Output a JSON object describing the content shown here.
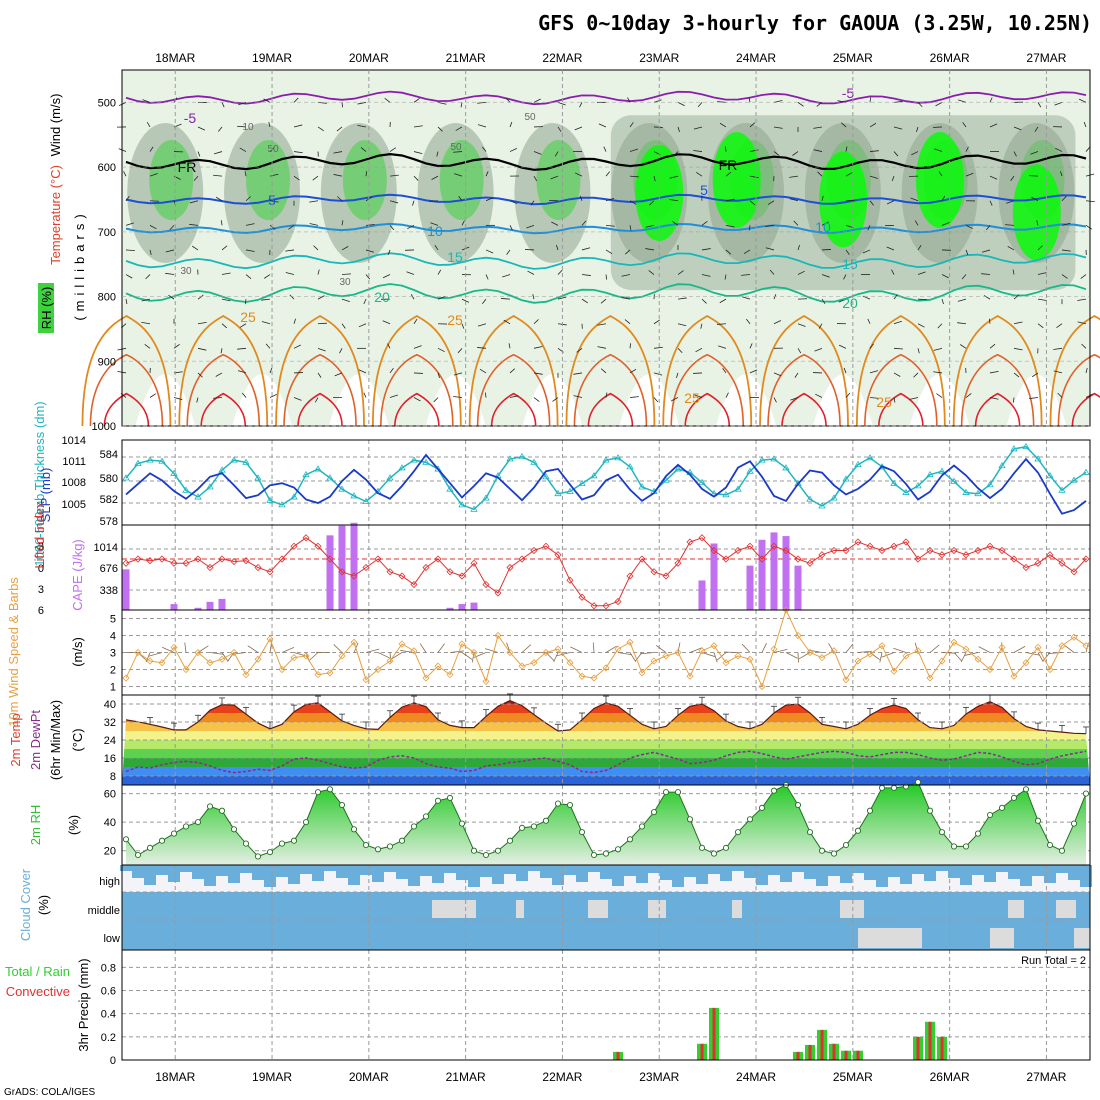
{
  "title": "GFS 0~10day 3-hourly for GAOUA (3.25W, 10.25N)",
  "footer": "GrADS: COLA/IGES",
  "dates": [
    "18MAR",
    "19MAR",
    "20MAR",
    "21MAR",
    "22MAR",
    "23MAR",
    "24MAR",
    "25MAR",
    "26MAR",
    "27MAR"
  ],
  "colors": {
    "rh_fill": "#b9d6b9",
    "rh_dark": "#8ea58e",
    "rh_green": "#3fd23f",
    "rh_bright": "#00ff00",
    "temp_purple": "#8a1db0",
    "temp_black": "#000000",
    "temp_blue": "#1c4fd6",
    "temp_lightblue": "#1e8fd8",
    "temp_cyan": "#19b7b7",
    "temp_teal": "#17b88a",
    "temp_orange": "#e08a1e",
    "temp_red": "#e0202a",
    "thickness": "#20b6c0",
    "slp": "#1a3ac8",
    "lifted": "#e03030",
    "cape": "#c070f0",
    "wind": "#e8a040",
    "dewpoint": "#8b2a8b",
    "rh2m": "#30c030",
    "cloud": "#6aaedc",
    "precip_total": "#30d030",
    "precip_conv": "#e03030"
  },
  "panels": {
    "upper_air": {
      "ylabel_wind": "Wind (m/s)",
      "ylabel_temp": "Temperature (°C)",
      "ylabel_rh": "RH (%)",
      "ylabel_p": "(millibars)",
      "yticks": [
        "500",
        "600",
        "700",
        "800",
        "900",
        "1000"
      ],
      "contour_labels": [
        "-5",
        "-5",
        "FR",
        "FR",
        "5",
        "5",
        "10",
        "10",
        "15",
        "15",
        "20",
        "20",
        "25",
        "25",
        "25",
        "25",
        "50",
        "50",
        "30",
        "30",
        "50",
        "10"
      ]
    },
    "pressure": {
      "ylabel_thick": "1000-500mb Thickness (dm)",
      "ylabel_slp": "SLP (mb)",
      "left_ticks": [
        "584",
        "582",
        "580",
        "578"
      ],
      "right_ticks": [
        "1014",
        "1011",
        "1008",
        "1005"
      ]
    },
    "stability": {
      "ylabel_li": "Lifted Index",
      "ylabel_cape": "CAPE (J/kg)",
      "left_ticks": [
        "-3",
        "0",
        "3",
        "6"
      ],
      "right_ticks": [
        "1014",
        "676",
        "338"
      ]
    },
    "wind10m": {
      "ylabel": "10m Wind Speed & Barbs",
      "unit": "(m/s)",
      "ticks": [
        "5",
        "4",
        "3",
        "2",
        "1"
      ]
    },
    "temp2m": {
      "ylabel1": "2m Temp",
      "ylabel2": "2m DewPt",
      "ylabel3": "(6hr Min/Max)",
      "unit": "(°C)",
      "ticks": [
        "40",
        "32",
        "24",
        "16",
        "8"
      ]
    },
    "rh2m": {
      "ylabel": "2m RH",
      "unit": "(%)",
      "ticks": [
        "60",
        "40",
        "20"
      ]
    },
    "cloud": {
      "ylabel": "Cloud Cover",
      "unit": "(%)",
      "levels": [
        "high",
        "middle",
        "low"
      ]
    },
    "precip": {
      "ylabel1": "Total / Rain",
      "ylabel2": "Convective",
      "ylabel3": "3hr Precip (mm)",
      "run_total": "Run Total = 2",
      "ticks": [
        "0.8",
        "0.6",
        "0.4",
        "0.2",
        "0"
      ]
    }
  },
  "chart_data": [
    {
      "type": "line",
      "name": "SLP",
      "unit": "mb",
      "ylim": [
        1003,
        1014
      ],
      "values": [
        1006.8,
        1008.3,
        1009.8,
        1008.8,
        1007.3,
        1006.2,
        1007.6,
        1009.3,
        1009.8,
        1008.1,
        1006.3,
        1006.7,
        1008.1,
        1008.4,
        1007.8,
        1006.1,
        1005.6,
        1006.5,
        1008.7,
        1010.3,
        1008.9,
        1007.0,
        1006.2,
        1008.0,
        1010.1,
        1012.4,
        1010.4,
        1008.4,
        1006.4,
        1008.0,
        1009.8,
        1009.2,
        1007.6,
        1006.0,
        1007.8,
        1010.1,
        1010.4,
        1008.2,
        1006.1,
        1006.7,
        1008.8,
        1009.6,
        1007.5,
        1005.9,
        1007.0,
        1009.4,
        1011.0,
        1009.6,
        1007.6,
        1006.5,
        1007.8,
        1010.6,
        1011.5,
        1009.3,
        1006.6,
        1005.9,
        1008.3,
        1010.2,
        1009.9,
        1008.1,
        1006.8,
        1007.6,
        1008.9,
        1010.8,
        1010.1,
        1008.3,
        1006.1,
        1007.2,
        1009.5,
        1010.9,
        1009.5,
        1007.7,
        1006.3,
        1007.6,
        1009.8,
        1011.8,
        1009.9,
        1006.9,
        1004.1,
        1004.6,
        1005.9
      ]
    },
    {
      "type": "line",
      "name": "1000-500mb Thickness",
      "unit": "dm",
      "ylim": [
        578,
        585
      ],
      "values": [
        582.0,
        583.3,
        583.6,
        583.5,
        582.4,
        580.9,
        580.3,
        581.2,
        582.7,
        583.6,
        583.4,
        582.0,
        580.0,
        579.6,
        580.3,
        582.3,
        582.8,
        582.0,
        581.0,
        580.4,
        579.9,
        580.8,
        582.0,
        582.9,
        583.6,
        583.4,
        582.8,
        581.0,
        579.6,
        579.2,
        580.2,
        582.2,
        583.7,
        583.9,
        583.4,
        582.1,
        580.6,
        580.8,
        581.5,
        582.2,
        583.6,
        583.8,
        583.0,
        581.2,
        580.8,
        581.8,
        582.8,
        582.5,
        581.6,
        580.6,
        580.5,
        581.0,
        582.6,
        583.6,
        583.7,
        582.9,
        581.5,
        580.1,
        579.5,
        580.2,
        581.9,
        583.2,
        583.8,
        583.0,
        581.5,
        580.7,
        581.3,
        582.3,
        582.6,
        581.7,
        580.7,
        580.6,
        581.4,
        583.1,
        584.6,
        584.8,
        583.7,
        582.2,
        580.9,
        581.8,
        582.5
      ]
    },
    {
      "type": "line",
      "name": "Lifted Index",
      "ylim": [
        6,
        -4
      ],
      "values": [
        0.5,
        0.0,
        0.2,
        0.0,
        0.5,
        0.5,
        0.0,
        1.0,
        0.0,
        0.3,
        0.2,
        1.0,
        1.5,
        0.0,
        -1.5,
        -2.5,
        -1.5,
        0.0,
        1.5,
        2.0,
        1.0,
        0.0,
        1.5,
        2.0,
        3.0,
        1.0,
        0.0,
        1.5,
        2.0,
        0.5,
        3.0,
        4.0,
        1.0,
        0.0,
        -1.0,
        -1.5,
        -0.5,
        2.5,
        4.5,
        5.5,
        5.5,
        5.0,
        2.0,
        0.0,
        1.5,
        2.0,
        0.5,
        -2.0,
        -2.5,
        -1.0,
        0.0,
        -1.0,
        -1.5,
        0.0,
        -1.5,
        -1.0,
        0.0,
        0.5,
        -0.5,
        -1.0,
        -1.0,
        -2.0,
        -1.5,
        -1.0,
        -1.5,
        -2.0,
        0.0,
        -1.0,
        -0.5,
        -1.0,
        -0.5,
        -1.0,
        -1.5,
        -1.0,
        0.0,
        1.0,
        0.5,
        -0.5,
        0.5,
        1.5,
        0.0
      ]
    },
    {
      "type": "bar",
      "name": "CAPE",
      "unit": "J/kg",
      "ylim": [
        0,
        1150
      ],
      "values": [
        550,
        0,
        0,
        0,
        80,
        0,
        30,
        110,
        150,
        0,
        0,
        0,
        0,
        0,
        0,
        0,
        0,
        1010,
        1140,
        1180,
        0,
        0,
        0,
        0,
        0,
        0,
        0,
        30,
        80,
        100,
        0,
        0,
        0,
        0,
        0,
        0,
        0,
        0,
        0,
        0,
        0,
        0,
        0,
        0,
        0,
        0,
        0,
        0,
        400,
        900,
        0,
        0,
        600,
        950,
        1050,
        1000,
        600,
        0,
        0,
        0,
        0,
        0,
        0,
        0,
        0,
        0,
        0,
        0,
        0,
        0,
        0,
        0,
        0,
        0,
        0,
        0,
        0,
        0,
        0,
        0,
        0
      ]
    },
    {
      "type": "line",
      "name": "10m Wind Speed",
      "unit": "m/s",
      "ylim": [
        0.5,
        5.5
      ],
      "values": [
        1.5,
        3.0,
        2.5,
        2.4,
        3.3,
        2.0,
        3.0,
        2.4,
        2.6,
        3.0,
        1.7,
        2.6,
        3.8,
        2.0,
        2.7,
        2.8,
        1.7,
        1.8,
        2.8,
        3.6,
        1.4,
        2.0,
        2.5,
        3.5,
        3.1,
        1.5,
        2.2,
        1.7,
        3.5,
        3.0,
        1.3,
        4.0,
        3.0,
        2.2,
        2.4,
        3.0,
        3.2,
        2.4,
        1.6,
        1.5,
        2.1,
        3.2,
        3.6,
        1.8,
        2.5,
        2.8,
        3.0,
        1.6,
        3.1,
        3.4,
        2.4,
        2.8,
        2.6,
        1.0,
        3.2,
        5.5,
        4.0,
        3.0,
        2.7,
        3.1,
        1.4,
        2.5,
        2.9,
        3.4,
        1.9,
        2.8,
        3.1,
        1.5,
        2.5,
        3.6,
        3.2,
        2.6,
        2.0,
        3.3,
        1.6,
        2.4,
        3.3,
        2.0,
        3.4,
        3.9,
        3.4
      ]
    },
    {
      "type": "area",
      "name": "2m Temp",
      "unit": "°C",
      "ylim": [
        4,
        44
      ],
      "values": [
        33.0,
        32.1,
        31.0,
        29.8,
        28.5,
        28.5,
        32.0,
        37.2,
        39.7,
        39.5,
        35.5,
        31.5,
        29.0,
        31.0,
        36.5,
        39.8,
        40.5,
        36.5,
        32.5,
        30.5,
        29.0,
        28.7,
        34.0,
        38.6,
        40.5,
        38.8,
        33.0,
        30.5,
        29.5,
        29.5,
        34.5,
        39.0,
        41.5,
        39.3,
        35.3,
        31.5,
        28.0,
        28.5,
        33.0,
        38.0,
        40.5,
        39.0,
        35.0,
        31.0,
        29.0,
        30.0,
        35.0,
        39.0,
        40.0,
        37.0,
        32.5,
        30.0,
        29.0,
        31.0,
        36.0,
        39.5,
        40.0,
        36.0,
        31.0,
        30.0,
        29.0,
        31.0,
        35.0,
        38.0,
        39.5,
        38.0,
        33.0,
        29.5,
        29.0,
        30.5,
        35.5,
        39.0,
        41.0,
        38.5,
        33.5,
        30.0,
        28.5,
        28.0,
        27.5,
        27.0,
        26.8
      ]
    },
    {
      "type": "line",
      "name": "2m DewPt",
      "unit": "°C",
      "ylim": [
        4,
        44
      ],
      "values": [
        10.0,
        12.0,
        11.5,
        13.0,
        14.0,
        14.5,
        14.0,
        12.5,
        10.5,
        9.5,
        10.0,
        11.0,
        10.5,
        12.5,
        15.5,
        16.0,
        15.0,
        13.5,
        12.0,
        11.5,
        12.0,
        15.0,
        16.5,
        17.0,
        16.0,
        13.5,
        12.0,
        11.5,
        10.0,
        10.5,
        12.5,
        13.0,
        14.0,
        14.5,
        15.5,
        16.0,
        14.5,
        13.0,
        10.0,
        9.5,
        10.5,
        13.0,
        16.0,
        17.5,
        18.5,
        17.0,
        15.5,
        13.5,
        14.0,
        15.0,
        17.0,
        18.5,
        19.0,
        18.0,
        16.5,
        15.5,
        16.5,
        17.5,
        18.5,
        19.0,
        18.5,
        17.0,
        16.5,
        17.5,
        18.5,
        18.5,
        17.5,
        16.0,
        15.0,
        15.5,
        17.0,
        18.5,
        18.0,
        16.5,
        14.5,
        13.0,
        13.5,
        15.5,
        17.0,
        18.0,
        19.0
      ]
    },
    {
      "type": "area",
      "name": "2m RH",
      "unit": "%",
      "ylim": [
        10,
        65
      ],
      "values": [
        28,
        17,
        22,
        27,
        32,
        37,
        40,
        51,
        48,
        35,
        25,
        16,
        19,
        25,
        27,
        40,
        61,
        63,
        52,
        35,
        24,
        21,
        23,
        27,
        37,
        44,
        55,
        57,
        39,
        20,
        17,
        20,
        27,
        36,
        37,
        41,
        53,
        52,
        33,
        17,
        18,
        21,
        28,
        37,
        47,
        61,
        61,
        42,
        22,
        18,
        22,
        33,
        42,
        50,
        62,
        66,
        52,
        33,
        20,
        18,
        24,
        34,
        48,
        64,
        64,
        65,
        68,
        48,
        33,
        23,
        23,
        32,
        45,
        50,
        57,
        63,
        41,
        24,
        20,
        39,
        60
      ]
    },
    {
      "type": "bar",
      "name": "3hr Precip Total",
      "unit": "mm",
      "ylim": [
        0,
        0.95
      ],
      "categories_note": "dates in data",
      "x": [
        "22MAR 21Z",
        "23MAR 18Z",
        "23MAR 21Z",
        "24MAR 18Z",
        "24MAR 21Z",
        "25MAR 00Z",
        "25MAR 03Z",
        "25MAR 06Z",
        "25MAR 09Z",
        "25MAR 18Z",
        "25MAR 21Z",
        "26MAR 00Z"
      ],
      "values": [
        0.07,
        0.14,
        0.45,
        0.07,
        0.13,
        0.26,
        0.14,
        0.08,
        0.08,
        0.2,
        0.33,
        0.2
      ]
    }
  ]
}
